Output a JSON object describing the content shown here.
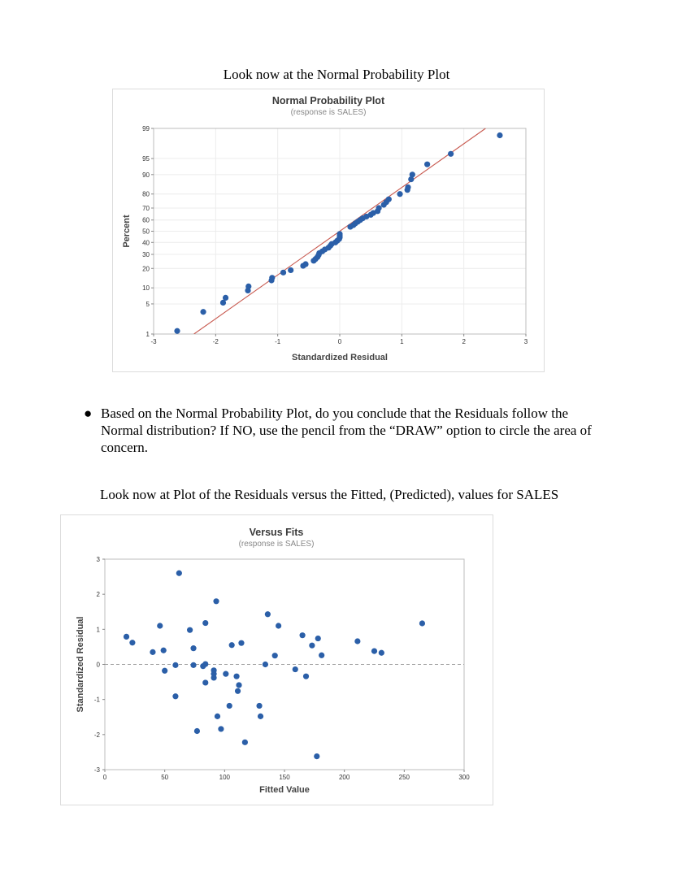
{
  "document": {
    "heading_npp": "Look now at the Normal Probability Plot",
    "bullet_text": "Based on the Normal Probability Plot, do you conclude that the Residuals follow the Normal distribution? If NO, use the pencil from the “DRAW” option to circle the area of concern.",
    "heading_fits": "Look now at Plot of the Residuals versus the Fitted, (Predicted), values for SALES"
  },
  "chart_data": [
    {
      "type": "scatter",
      "title": "Normal Probability Plot",
      "subtitle": "(response is SALES)",
      "xlabel": "Standardized Residual",
      "ylabel": "Percent",
      "xlim": [
        -3,
        3
      ],
      "y_scale": "normal-probability",
      "x_ticks": [
        -3,
        -2,
        -1,
        0,
        1,
        2,
        3
      ],
      "y_ticks": [
        1,
        5,
        10,
        20,
        30,
        40,
        50,
        60,
        70,
        80,
        90,
        95,
        99
      ],
      "fit_line": {
        "color": "#c85a50",
        "from": [
          -2.35,
          1
        ],
        "to": [
          2.35,
          99
        ]
      },
      "grid": true,
      "point_color": "#2b5fa8",
      "points": [
        [
          -2.62,
          1.2
        ],
        [
          -2.2,
          3.4
        ],
        [
          -1.88,
          5.3
        ],
        [
          -1.84,
          6.6
        ],
        [
          -1.48,
          9.0
        ],
        [
          -1.47,
          10.6
        ],
        [
          -1.1,
          13.3
        ],
        [
          -1.09,
          14.6
        ],
        [
          -0.91,
          17.5
        ],
        [
          -0.79,
          18.9
        ],
        [
          -0.59,
          21.7
        ],
        [
          -0.55,
          22.8
        ],
        [
          -0.42,
          25.2
        ],
        [
          -0.39,
          26.5
        ],
        [
          -0.36,
          27.9
        ],
        [
          -0.34,
          29.5
        ],
        [
          -0.33,
          31.0
        ],
        [
          -0.28,
          32.5
        ],
        [
          -0.24,
          34.0
        ],
        [
          -0.18,
          35.5
        ],
        [
          -0.15,
          37.2
        ],
        [
          -0.13,
          38.6
        ],
        [
          -0.07,
          40.0
        ],
        [
          -0.04,
          41.5
        ],
        [
          -0.01,
          43.0
        ],
        [
          0.0,
          44.5
        ],
        [
          0.0,
          46.0
        ],
        [
          0.0,
          47.5
        ],
        [
          0.17,
          54.0
        ],
        [
          0.22,
          55.5
        ],
        [
          0.25,
          57.0
        ],
        [
          0.29,
          58.5
        ],
        [
          0.33,
          60.0
        ],
        [
          0.37,
          61.5
        ],
        [
          0.43,
          63.0
        ],
        [
          0.5,
          64.5
        ],
        [
          0.54,
          66.0
        ],
        [
          0.61,
          67.5
        ],
        [
          0.63,
          70.0
        ],
        [
          0.71,
          72.5
        ],
        [
          0.75,
          74.5
        ],
        [
          0.79,
          76.5
        ],
        [
          0.97,
          80.0
        ],
        [
          1.09,
          82.5
        ],
        [
          1.1,
          84.0
        ],
        [
          1.15,
          88.0
        ],
        [
          1.17,
          90.0
        ],
        [
          1.41,
          93.5
        ],
        [
          1.79,
          96.0
        ],
        [
          2.58,
          98.5
        ]
      ]
    },
    {
      "type": "scatter",
      "title": "Versus Fits",
      "subtitle": "(response is SALES)",
      "xlabel": "Fitted Value",
      "ylabel": "Standardized Residual",
      "xlim": [
        0,
        300
      ],
      "ylim": [
        -3,
        3
      ],
      "x_ticks": [
        0,
        50,
        100,
        150,
        200,
        250,
        300
      ],
      "y_ticks": [
        -3,
        -2,
        -1,
        0,
        1,
        2,
        3
      ],
      "reference_line": {
        "y": 0,
        "style": "dashed",
        "color": "#a0a0a0"
      },
      "point_color": "#2b5fa8",
      "points": [
        [
          18,
          0.79
        ],
        [
          23,
          0.62
        ],
        [
          40,
          0.35
        ],
        [
          46,
          1.1
        ],
        [
          49,
          0.4
        ],
        [
          50,
          -0.18
        ],
        [
          59,
          -0.02
        ],
        [
          59,
          -0.91
        ],
        [
          62,
          2.6
        ],
        [
          71,
          0.98
        ],
        [
          74,
          0.46
        ],
        [
          74,
          -0.02
        ],
        [
          77,
          -1.9
        ],
        [
          82,
          -0.05
        ],
        [
          84,
          1.18
        ],
        [
          84,
          -0.52
        ],
        [
          84,
          0.01
        ],
        [
          91,
          -0.17
        ],
        [
          91,
          -0.27
        ],
        [
          91,
          -0.38
        ],
        [
          93,
          1.8
        ],
        [
          94,
          -1.48
        ],
        [
          97,
          -1.84
        ],
        [
          101,
          -0.27
        ],
        [
          104,
          -1.18
        ],
        [
          106,
          0.55
        ],
        [
          110,
          -0.34
        ],
        [
          111,
          -0.76
        ],
        [
          112,
          -0.59
        ],
        [
          114,
          0.61
        ],
        [
          117,
          -2.22
        ],
        [
          129,
          -1.18
        ],
        [
          130,
          -1.48
        ],
        [
          134,
          0.0
        ],
        [
          136,
          1.43
        ],
        [
          142,
          0.25
        ],
        [
          145,
          1.1
        ],
        [
          159,
          -0.14
        ],
        [
          165,
          0.83
        ],
        [
          168,
          -0.34
        ],
        [
          173,
          0.54
        ],
        [
          177,
          -2.62
        ],
        [
          178,
          0.74
        ],
        [
          181,
          0.26
        ],
        [
          211,
          0.66
        ],
        [
          225,
          0.38
        ],
        [
          231,
          0.33
        ],
        [
          265,
          1.17
        ]
      ]
    }
  ]
}
